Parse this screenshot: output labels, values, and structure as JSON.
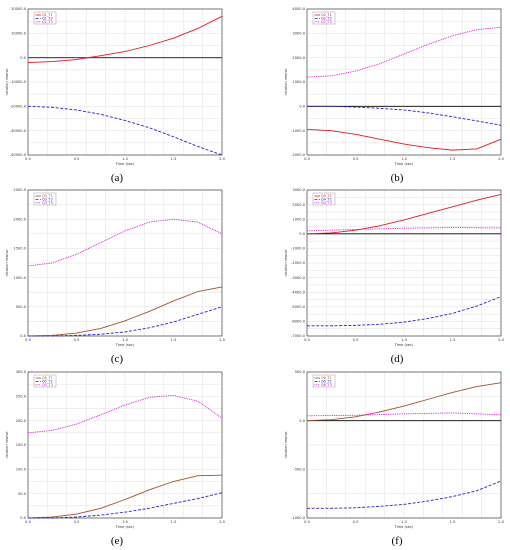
{
  "chart_data": [
    {
      "panel": "(a)",
      "type": "line",
      "xlabel": "Time (sec)",
      "ylabel": "rotation rewise",
      "xlim": [
        0,
        2
      ],
      "ylim": [
        -40000,
        20000
      ],
      "xticks": [
        "0.0",
        "0.5",
        "1.0",
        "1.5",
        "2.0"
      ],
      "yticks": [
        "-40000.0",
        "-30000.0",
        "-20000.0",
        "-10000.0",
        "0.0",
        "10000.0",
        "20000.0"
      ],
      "legend": [
        "Q1_T1",
        "Q1_T2",
        "Q1_T3"
      ],
      "grid": true,
      "series": [
        {
          "name": "Q1_T1",
          "color": "#e41a1c",
          "style": "solid",
          "x": [
            0,
            0.25,
            0.5,
            0.75,
            1.0,
            1.25,
            1.5,
            1.75,
            2.0
          ],
          "y": [
            -2000,
            -1600,
            -800,
            800,
            2500,
            5000,
            8000,
            12000,
            17000
          ]
        },
        {
          "name": "Q1_T2",
          "color": "#2424c8",
          "style": "dashed",
          "x": [
            0,
            0.25,
            0.5,
            0.75,
            1.0,
            1.25,
            1.5,
            1.75,
            2.0
          ],
          "y": [
            -20000,
            -20400,
            -21500,
            -23300,
            -25800,
            -28800,
            -32500,
            -36500,
            -40000
          ]
        },
        {
          "name": "Q1_T3",
          "color": "#e000e0",
          "style": "dotted",
          "x": [
            0,
            0.5,
            1.0,
            1.5,
            2.0
          ],
          "y": [
            0,
            0,
            0,
            0,
            0
          ]
        }
      ]
    },
    {
      "panel": "(b)",
      "type": "line",
      "xlabel": "Time (sec)",
      "ylabel": "rotation rewise",
      "xlim": [
        0,
        2
      ],
      "ylim": [
        -2000,
        4000
      ],
      "xticks": [
        "0.0",
        "0.5",
        "1.0",
        "1.5",
        "2.0"
      ],
      "yticks": [
        "-2000.0",
        "-1000.0",
        "0.0",
        "1000.0",
        "2000.0",
        "3000.0",
        "4000.0"
      ],
      "legend": [
        "Q2_T1",
        "Q2_T2",
        "Q2_T3"
      ],
      "grid": true,
      "series": [
        {
          "name": "Q2_T1",
          "color": "#e41a1c",
          "style": "solid",
          "x": [
            0,
            0.25,
            0.5,
            0.75,
            1.0,
            1.25,
            1.5,
            1.75,
            2.0
          ],
          "y": [
            -950,
            -1000,
            -1150,
            -1350,
            -1550,
            -1700,
            -1800,
            -1750,
            -1350
          ]
        },
        {
          "name": "Q2_T2",
          "color": "#2424c8",
          "style": "dashed",
          "x": [
            0,
            0.25,
            0.5,
            0.75,
            1.0,
            1.25,
            1.5,
            1.75,
            2.0
          ],
          "y": [
            0,
            0,
            -30,
            -80,
            -150,
            -270,
            -430,
            -600,
            -780
          ]
        },
        {
          "name": "Q2_T3",
          "color": "#e000e0",
          "style": "dotted",
          "x": [
            0,
            0.25,
            0.5,
            0.75,
            1.0,
            1.25,
            1.5,
            1.75,
            2.0
          ],
          "y": [
            1200,
            1250,
            1450,
            1750,
            2150,
            2550,
            2900,
            3150,
            3250
          ]
        }
      ]
    },
    {
      "panel": "(c)",
      "type": "line",
      "xlabel": "Time (sec)",
      "ylabel": "rotation rewise",
      "xlim": [
        0,
        2
      ],
      "ylim": [
        0,
        2500
      ],
      "xticks": [
        "0.0",
        "0.5",
        "1.0",
        "1.5",
        "2.0"
      ],
      "yticks": [
        "0.0",
        "500.0",
        "1000.0",
        "1500.0",
        "2000.0",
        "2500.0"
      ],
      "legend": [
        "Q3_T1",
        "Q3_T2",
        "Q3_T3"
      ],
      "grid": true,
      "series": [
        {
          "name": "Q3_T1",
          "color": "#a0522d",
          "style": "solid",
          "x": [
            0,
            0.25,
            0.5,
            0.75,
            1.0,
            1.25,
            1.5,
            1.75,
            2.0
          ],
          "y": [
            0,
            10,
            50,
            130,
            260,
            420,
            600,
            760,
            840
          ]
        },
        {
          "name": "Q3_T2",
          "color": "#2424c8",
          "style": "dashed",
          "x": [
            0,
            0.25,
            0.5,
            0.75,
            1.0,
            1.25,
            1.5,
            1.75,
            2.0
          ],
          "y": [
            0,
            0,
            10,
            30,
            70,
            140,
            240,
            370,
            500
          ]
        },
        {
          "name": "Q3_T3",
          "color": "#e000e0",
          "style": "dotted",
          "x": [
            0,
            0.25,
            0.5,
            0.75,
            1.0,
            1.25,
            1.5,
            1.75,
            2.0
          ],
          "y": [
            1200,
            1250,
            1400,
            1600,
            1800,
            1950,
            2000,
            1950,
            1750
          ]
        }
      ]
    },
    {
      "panel": "(d)",
      "type": "line",
      "xlabel": "Time (sec)",
      "ylabel": "rotation rewise",
      "xlim": [
        0,
        2
      ],
      "ylim": [
        -7000,
        3000
      ],
      "xticks": [
        "0.0",
        "0.5",
        "1.0",
        "1.5",
        "2.0"
      ],
      "yticks": [
        "-7000.0",
        "-6000.0",
        "-5000.0",
        "-4000.0",
        "-3000.0",
        "-2000.0",
        "-1000.0",
        "0.0",
        "1000.0",
        "2000.0",
        "3000.0"
      ],
      "legend": [
        "Q4_T1",
        "Q4_T2",
        "Q4_T3"
      ],
      "grid": true,
      "series": [
        {
          "name": "Q4_T1",
          "color": "#e41a1c",
          "style": "solid",
          "x": [
            0,
            0.25,
            0.5,
            0.75,
            1.0,
            1.25,
            1.5,
            1.75,
            2.0
          ],
          "y": [
            0,
            60,
            250,
            550,
            950,
            1400,
            1850,
            2300,
            2700
          ]
        },
        {
          "name": "Q4_T2",
          "color": "#2424c8",
          "style": "dashed",
          "x": [
            0,
            0.25,
            0.5,
            0.75,
            1.0,
            1.25,
            1.5,
            1.75,
            2.0
          ],
          "y": [
            -6300,
            -6300,
            -6270,
            -6200,
            -6050,
            -5800,
            -5450,
            -4950,
            -4300
          ]
        },
        {
          "name": "Q4_T3",
          "color": "#e000e0",
          "style": "dotted",
          "x": [
            0,
            0.5,
            1.0,
            1.5,
            2.0
          ],
          "y": [
            200,
            300,
            380,
            430,
            400
          ]
        }
      ]
    },
    {
      "panel": "(e)",
      "type": "line",
      "xlabel": "Time (sec)",
      "ylabel": "rotation rewise",
      "xlim": [
        0,
        2
      ],
      "ylim": [
        0,
        300
      ],
      "xticks": [
        "0.0",
        "0.5",
        "1.0",
        "1.5",
        "2.0"
      ],
      "yticks": [
        "0.0",
        "50.0",
        "100.0",
        "150.0",
        "200.0",
        "250.0",
        "300.0"
      ],
      "legend": [
        "Q5_T1",
        "Q5_T2",
        "Q5_T3"
      ],
      "grid": true,
      "series": [
        {
          "name": "Q5_T1",
          "color": "#a0522d",
          "style": "solid",
          "x": [
            0,
            0.25,
            0.5,
            0.75,
            1.0,
            1.25,
            1.5,
            1.75,
            2.0
          ],
          "y": [
            0,
            2,
            8,
            20,
            38,
            58,
            75,
            87,
            88
          ]
        },
        {
          "name": "Q5_T2",
          "color": "#2424c8",
          "style": "dashed",
          "x": [
            0,
            0.25,
            0.5,
            0.75,
            1.0,
            1.25,
            1.5,
            1.75,
            2.0
          ],
          "y": [
            0,
            0,
            2,
            6,
            12,
            20,
            30,
            40,
            52
          ]
        },
        {
          "name": "Q5_T3",
          "color": "#e000e0",
          "style": "dotted",
          "x": [
            0,
            0.25,
            0.5,
            0.75,
            1.0,
            1.25,
            1.5,
            1.75,
            2.0
          ],
          "y": [
            175,
            180,
            193,
            212,
            232,
            248,
            252,
            240,
            205
          ]
        }
      ]
    },
    {
      "panel": "(f)",
      "type": "line",
      "xlabel": "Time (sec)",
      "ylabel": "rotation rewise",
      "xlim": [
        0,
        2
      ],
      "ylim": [
        -1000,
        500
      ],
      "xticks": [
        "0.0",
        "0.5",
        "1.0",
        "1.5",
        "2.0"
      ],
      "yticks": [
        "-1000.0",
        "-500.0",
        "0.0",
        "500.0"
      ],
      "legend": [
        "Q6_T1",
        "Q6_T2",
        "Q6_T3"
      ],
      "grid": true,
      "series": [
        {
          "name": "Q6_T1",
          "color": "#a0522d",
          "style": "solid",
          "x": [
            0,
            0.25,
            0.5,
            0.75,
            1.0,
            1.25,
            1.5,
            1.75,
            2.0
          ],
          "y": [
            0,
            10,
            40,
            90,
            150,
            220,
            290,
            350,
            390
          ]
        },
        {
          "name": "Q6_T2",
          "color": "#2424c8",
          "style": "dashed",
          "x": [
            0,
            0.25,
            0.5,
            0.75,
            1.0,
            1.25,
            1.5,
            1.75,
            2.0
          ],
          "y": [
            -900,
            -900,
            -895,
            -880,
            -860,
            -825,
            -780,
            -720,
            -620
          ]
        },
        {
          "name": "Q6_T3",
          "color": "#e000e0",
          "style": "dotted",
          "x": [
            0,
            0.5,
            1.0,
            1.5,
            2.0
          ],
          "y": [
            50,
            55,
            70,
            80,
            60
          ]
        }
      ]
    }
  ]
}
